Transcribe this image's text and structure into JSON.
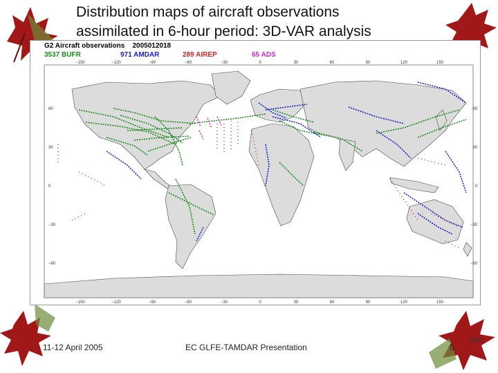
{
  "slide": {
    "title_line1": "Distribution maps of aircraft observations",
    "title_line2": "assimilated in 6-hour period: 3D-VAR analysis",
    "footer_date": "11-12 April 2005",
    "footer_center": "EC GLFE-TAMDAR Presentation",
    "page_number": "5",
    "org": "CMC"
  },
  "figure": {
    "header_title": "G2 Aircraft observations",
    "header_date": "2005012018",
    "legend": [
      {
        "label": "3537 BUFR",
        "color": "#1a8a1a"
      },
      {
        "label": "971 AMDAR",
        "color": "#1a1acc"
      },
      {
        "label": "289 AIREP",
        "color": "#cc2222"
      },
      {
        "label": "65 ADS",
        "color": "#cc22cc"
      }
    ],
    "top_lon_labels": [
      "−150",
      "−120",
      "−90",
      "−60",
      "−30",
      "0",
      "30",
      "60",
      "90",
      "120",
      "150"
    ],
    "bottom_lon_labels": [
      "−150",
      "−120",
      "−90",
      "−60",
      "−30",
      "0",
      "30",
      "60",
      "90",
      "120",
      "150"
    ],
    "left_lat_labels": [
      "60",
      "30",
      "0",
      "−30",
      "−60"
    ],
    "right_lat_labels": [
      "60",
      "30",
      "0",
      "−30",
      "−60"
    ],
    "land_color": "#dcdcdc",
    "ocean_color": "#ffffff"
  }
}
